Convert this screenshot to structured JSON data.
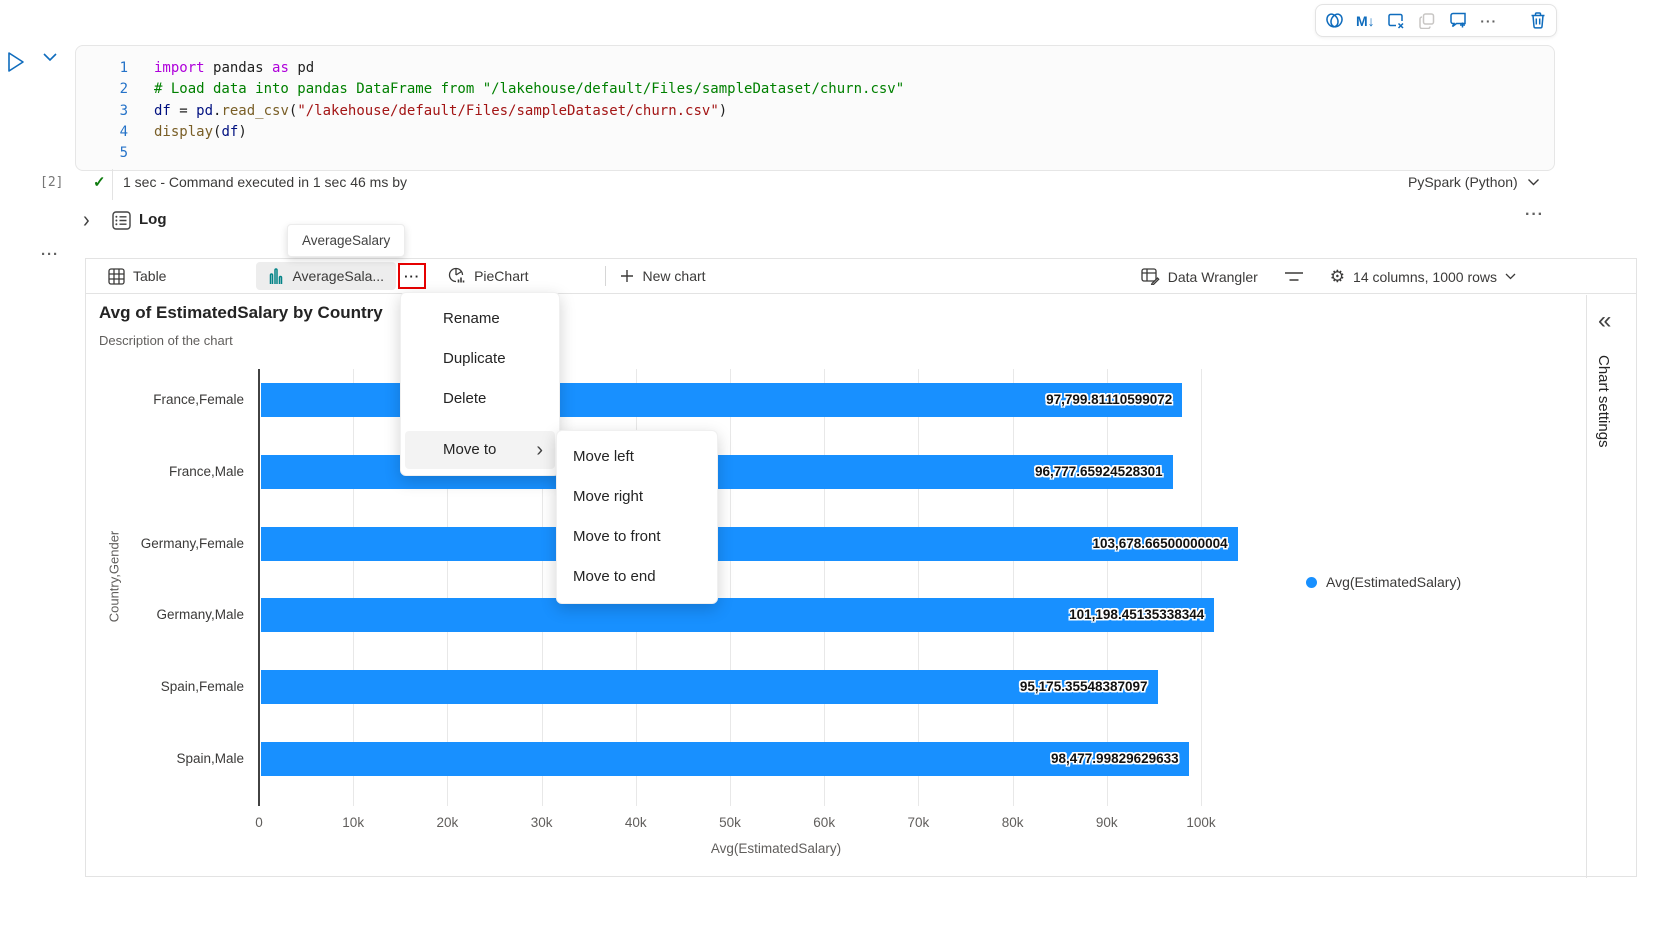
{
  "toolbar": {
    "icons": [
      {
        "name": "copilot-icon"
      },
      {
        "name": "markdown-icon",
        "glyph": "M↓"
      },
      {
        "name": "clear-output-icon"
      },
      {
        "name": "copy-icon"
      },
      {
        "name": "comment-add-icon"
      },
      {
        "name": "more-options-icon",
        "glyph": "···"
      },
      {
        "name": "delete-cell-icon"
      }
    ]
  },
  "cell": {
    "code": {
      "lines": [
        {
          "n": "1",
          "tokens": [
            [
              "k",
              "import "
            ],
            [
              "p",
              "pandas "
            ],
            [
              "k",
              "as "
            ],
            [
              "p",
              "pd"
            ]
          ]
        },
        {
          "n": "2",
          "tokens": [
            [
              "c",
              "# Load data into pandas DataFrame from \"/lakehouse/default/Files/sampleDataset/churn.csv\""
            ]
          ]
        },
        {
          "n": "3",
          "tokens": [
            [
              "v",
              "df "
            ],
            [
              "p",
              "= "
            ],
            [
              "v",
              "pd"
            ],
            [
              "p",
              "."
            ],
            [
              "f",
              "read_csv"
            ],
            [
              "p",
              "("
            ],
            [
              "s",
              "\"/lakehouse/default/Files/sampleDataset/churn.csv\""
            ],
            [
              "p",
              ")"
            ]
          ]
        },
        {
          "n": "4",
          "tokens": [
            [
              "f",
              "display"
            ],
            [
              "p",
              "("
            ],
            [
              "v",
              "df"
            ],
            [
              "p",
              ")"
            ]
          ]
        },
        {
          "n": "5",
          "tokens": []
        }
      ]
    },
    "execution": {
      "index": "[2]",
      "check": "✓",
      "status": "1 sec - Command executed in 1 sec 46 ms by",
      "kernel": "PySpark (Python)"
    },
    "more_dots": "···"
  },
  "log": {
    "label": "Log"
  },
  "tooltip": {
    "text": "AverageSalary"
  },
  "tab_bar": {
    "table_tab": "Table",
    "chart_tab": "AverageSala...",
    "more_dots": "···",
    "pie_tab": "PieChart",
    "new_chart": "New chart",
    "data_wrangler": "Data Wrangler",
    "dimensions": "14 columns, 1000 rows"
  },
  "panel": {
    "collapse_glyph": "«",
    "title": "Chart settings"
  },
  "menu": {
    "items": [
      "Rename",
      "Duplicate",
      "Delete"
    ],
    "move_to": "Move to",
    "move_to_chevron": "›",
    "submenu": [
      "Move left",
      "Move right",
      "Move to front",
      "Move to end"
    ]
  },
  "chart_data": {
    "type": "bar",
    "orientation": "horizontal",
    "title": "Avg of EstimatedSalary by Country",
    "description": "Description of the chart",
    "categories": [
      "France,Female",
      "France,Male",
      "Germany,Female",
      "Germany,Male",
      "Spain,Female",
      "Spain,Male"
    ],
    "values": [
      97799.81110599072,
      96777.65924528301,
      103678.66500000004,
      101198.45135338344,
      95175.35548387097,
      98477.99829629633
    ],
    "value_labels": [
      "97,799.81110599072",
      "96,777.65924528301",
      "103,678.66500000004",
      "101,198.45135338344",
      "95,175.35548387097",
      "98,477.99829629633"
    ],
    "xlabel": "Avg(EstimatedSalary)",
    "ylabel": "Country,Gender",
    "xticks": [
      "0",
      "10k",
      "20k",
      "30k",
      "40k",
      "50k",
      "60k",
      "70k",
      "80k",
      "90k",
      "100k"
    ],
    "xtick_values": [
      0,
      10000,
      20000,
      30000,
      40000,
      50000,
      60000,
      70000,
      80000,
      90000,
      100000
    ],
    "xlim": [
      0,
      110000
    ],
    "legend": [
      "Avg(EstimatedSalary)"
    ],
    "legend_position": "right",
    "grid": true,
    "bar_color": "#1890ff",
    "colors": {
      "accent_blue": "#0f6cbd",
      "teal_icon": "#038387",
      "highlight_red": "#e60000",
      "check_green": "#107c10"
    }
  }
}
